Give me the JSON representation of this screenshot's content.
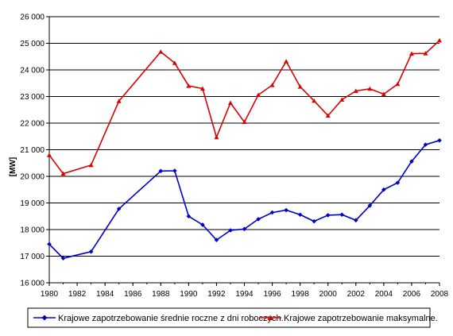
{
  "chart_data": {
    "type": "line",
    "ylabel": "[MW]",
    "xlabel": "",
    "xlim": [
      1980,
      2008
    ],
    "ylim": [
      16000,
      26000
    ],
    "x_ticks": [
      "1980",
      "1982",
      "1984",
      "1986",
      "1988",
      "1990",
      "1992",
      "1994",
      "1996",
      "1998",
      "2000",
      "2002",
      "2004",
      "2006",
      "2008"
    ],
    "y_ticks": [
      "16 000",
      "17 000",
      "18 000",
      "19 000",
      "20 000",
      "21 000",
      "22 000",
      "23 000",
      "24 000",
      "25 000",
      "26 000"
    ],
    "grid": "horizontal",
    "legend_position": "bottom",
    "series": [
      {
        "name": "Krajowe zapotrzebowanie średnie roczne z dni roboczych.",
        "color": "#0000cc",
        "marker": "diamond",
        "points": [
          [
            1980,
            17450
          ],
          [
            1981,
            16920
          ],
          [
            1983,
            17170
          ],
          [
            1985,
            18780
          ],
          [
            1988,
            20200
          ],
          [
            1989,
            20210
          ],
          [
            1990,
            18500
          ],
          [
            1991,
            18180
          ],
          [
            1992,
            17610
          ],
          [
            1993,
            17970
          ],
          [
            1994,
            18020
          ],
          [
            1995,
            18390
          ],
          [
            1996,
            18640
          ],
          [
            1997,
            18730
          ],
          [
            1998,
            18560
          ],
          [
            1999,
            18310
          ],
          [
            2000,
            18540
          ],
          [
            2001,
            18560
          ],
          [
            2002,
            18350
          ],
          [
            2003,
            18900
          ],
          [
            2004,
            19500
          ],
          [
            2005,
            19760
          ],
          [
            2006,
            20560
          ],
          [
            2007,
            21190
          ],
          [
            2008,
            21350
          ]
        ]
      },
      {
        "name": "Krajowe zapotrzebowanie maksymalne.",
        "color": "#dd0000",
        "marker": "triangle",
        "points": [
          [
            1980,
            20800
          ],
          [
            1981,
            20100
          ],
          [
            1983,
            20420
          ],
          [
            1985,
            22830
          ],
          [
            1988,
            24680
          ],
          [
            1989,
            24260
          ],
          [
            1990,
            23400
          ],
          [
            1991,
            23300
          ],
          [
            1992,
            21470
          ],
          [
            1993,
            22760
          ],
          [
            1994,
            22040
          ],
          [
            1995,
            23060
          ],
          [
            1996,
            23430
          ],
          [
            1997,
            24320
          ],
          [
            1998,
            23370
          ],
          [
            1999,
            22840
          ],
          [
            2000,
            22280
          ],
          [
            2001,
            22880
          ],
          [
            2002,
            23210
          ],
          [
            2003,
            23290
          ],
          [
            2004,
            23090
          ],
          [
            2005,
            23470
          ],
          [
            2006,
            24610
          ],
          [
            2007,
            24620
          ],
          [
            2008,
            25110
          ]
        ]
      }
    ]
  }
}
